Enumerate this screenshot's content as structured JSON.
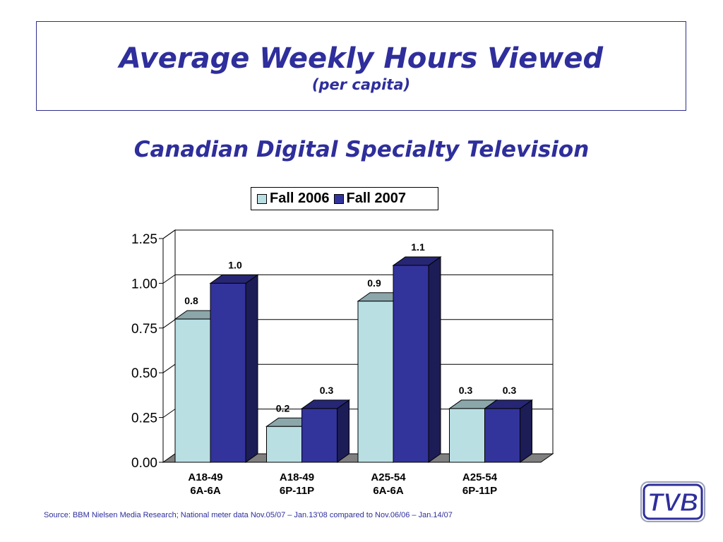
{
  "title": "Average Weekly Hours Viewed",
  "subtitle": "(per capita)",
  "chart_heading": "Canadian Digital Specialty Television",
  "source": "Source: BBM Nielsen Media Research; National meter data Nov.05/07 – Jan.13'08 compared to Nov.06/06 – Jan.14/07",
  "logo_text": "TVB",
  "colors": {
    "fall2006": "#b9dfe3",
    "fall2007": "#33339c",
    "accent": "#2e2e9c"
  },
  "chart_data": {
    "type": "bar",
    "categories": [
      [
        "A18-49",
        "6A-6A"
      ],
      [
        "A18-49",
        "6P-11P"
      ],
      [
        "A25-54",
        "6A-6A"
      ],
      [
        "A25-54",
        "6P-11P"
      ]
    ],
    "series": [
      {
        "name": "Fall 2006",
        "values": [
          0.8,
          0.2,
          0.9,
          0.3
        ],
        "labels": [
          "0.8",
          "0.2",
          "0.9",
          "0.3"
        ]
      },
      {
        "name": "Fall 2007",
        "values": [
          1.0,
          0.3,
          1.1,
          0.3
        ],
        "labels": [
          "1.0",
          "0.3",
          "1.1",
          "0.3"
        ]
      }
    ],
    "ylim": [
      0,
      1.25
    ],
    "yticks": [
      "0.00",
      "0.25",
      "0.50",
      "0.75",
      "1.00",
      "1.25"
    ],
    "legend_position": "top",
    "grid": true
  }
}
